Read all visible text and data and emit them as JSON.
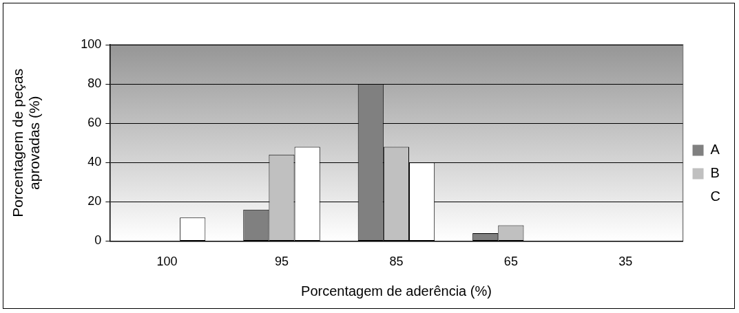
{
  "chart_data": {
    "type": "bar",
    "xlabel": "Porcentagem de aderência (%)",
    "ylabel": "Porcentagem de peças aprovadas (%)",
    "categories": [
      "100",
      "95",
      "85",
      "65",
      "35"
    ],
    "series": [
      {
        "name": "A",
        "color": "#808080",
        "values": [
          0,
          16,
          80,
          4,
          0
        ]
      },
      {
        "name": "B",
        "color": "#c0c0c0",
        "values": [
          0,
          44,
          48,
          8,
          0
        ]
      },
      {
        "name": "C",
        "color": "#ffffff",
        "values": [
          12,
          48,
          40,
          0,
          0
        ]
      }
    ],
    "ylim": [
      0,
      100
    ],
    "yticks": [
      0,
      20,
      40,
      60,
      80,
      100
    ],
    "grid": "y",
    "legend": "right"
  }
}
